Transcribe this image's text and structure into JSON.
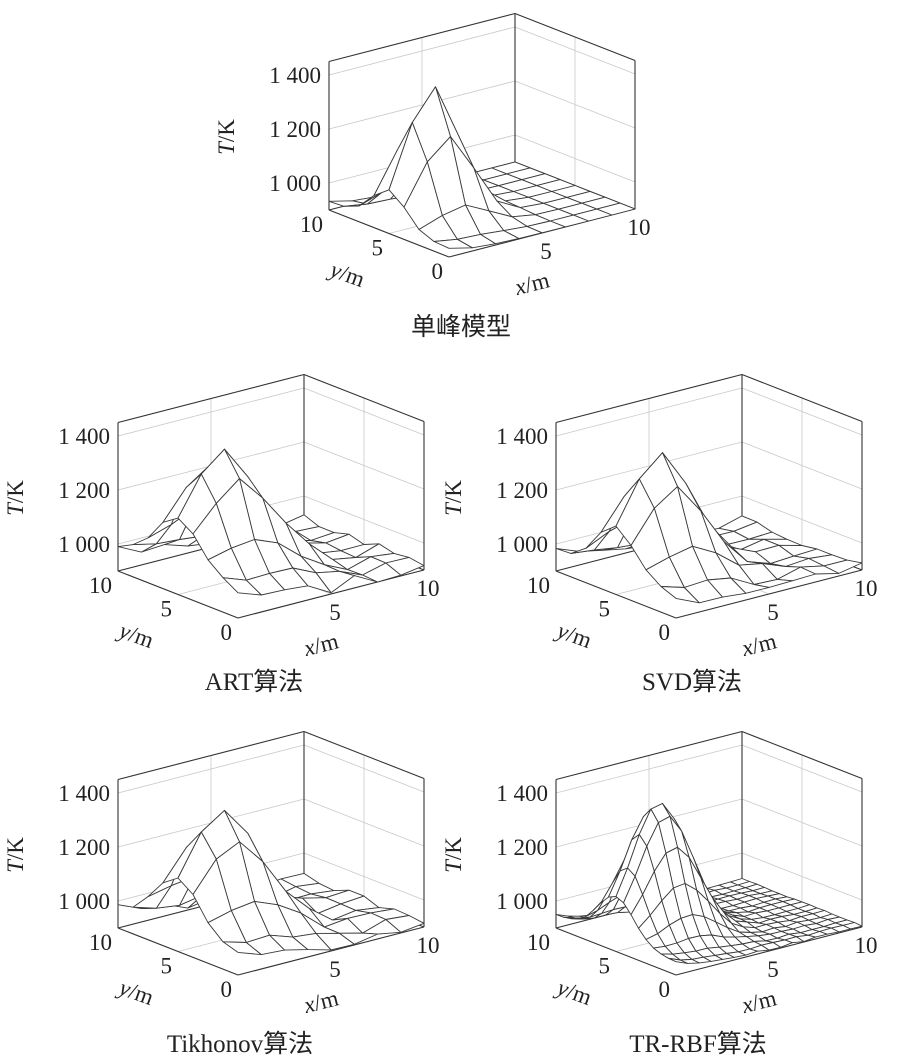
{
  "chart_data": [
    {
      "type": "surface",
      "title": "单峰模型",
      "xlabel": {
        "var": "x",
        "unit": "/m"
      },
      "ylabel": {
        "var": "y",
        "unit": "/m"
      },
      "zlabel": {
        "var": "T",
        "unit": "/K"
      },
      "x_ticks": [
        "5",
        "10"
      ],
      "y_ticks": [
        "0",
        "5",
        "10"
      ],
      "z_ticks": [
        "1 000",
        "1 200",
        "1 400"
      ],
      "xlim": [
        0,
        10
      ],
      "ylim": [
        0,
        10
      ],
      "zlim": [
        900,
        1450
      ],
      "grid": true,
      "surface": {
        "grid_n": 9,
        "base_T": 900,
        "peak_T": 1400,
        "peak_x": 2.3,
        "peak_y": 5.0,
        "sigma": 1.4,
        "edge_T": 940,
        "noise": 0
      }
    },
    {
      "type": "surface",
      "title": "ART算法",
      "xlabel": {
        "var": "x",
        "unit": "/m"
      },
      "ylabel": {
        "var": "y",
        "unit": "/m"
      },
      "zlabel": {
        "var": "T",
        "unit": "/K"
      },
      "x_ticks": [
        "5",
        "10"
      ],
      "y_ticks": [
        "0",
        "5",
        "10"
      ],
      "z_ticks": [
        "1 000",
        "1 200",
        "1 400"
      ],
      "xlim": [
        0,
        10
      ],
      "ylim": [
        0,
        10
      ],
      "zlim": [
        900,
        1450
      ],
      "grid": true,
      "surface": {
        "grid_n": 9,
        "base_T": 920,
        "peak_T": 1375,
        "peak_x": 2.5,
        "peak_y": 5.0,
        "sigma": 1.9,
        "edge_T": 1010,
        "noise": 28
      }
    },
    {
      "type": "surface",
      "title": "SVD算法",
      "xlabel": {
        "var": "x",
        "unit": "/m"
      },
      "ylabel": {
        "var": "y",
        "unit": "/m"
      },
      "zlabel": {
        "var": "T",
        "unit": "/K"
      },
      "x_ticks": [
        "5",
        "10"
      ],
      "y_ticks": [
        "0",
        "5",
        "10"
      ],
      "z_ticks": [
        "1 000",
        "1 200",
        "1 400"
      ],
      "xlim": [
        0,
        10
      ],
      "ylim": [
        0,
        10
      ],
      "zlim": [
        900,
        1450
      ],
      "grid": true,
      "surface": {
        "grid_n": 9,
        "base_T": 915,
        "peak_T": 1385,
        "peak_x": 2.4,
        "peak_y": 5.0,
        "sigma": 1.7,
        "edge_T": 990,
        "noise": 20
      }
    },
    {
      "type": "surface",
      "title": "Tikhonov算法",
      "xlabel": {
        "var": "x",
        "unit": "/m"
      },
      "ylabel": {
        "var": "y",
        "unit": "/m"
      },
      "zlabel": {
        "var": "T",
        "unit": "/K"
      },
      "x_ticks": [
        "5",
        "10"
      ],
      "y_ticks": [
        "0",
        "5",
        "10"
      ],
      "z_ticks": [
        "1 000",
        "1 200",
        "1 400"
      ],
      "xlim": [
        0,
        10
      ],
      "ylim": [
        0,
        10
      ],
      "zlim": [
        900,
        1450
      ],
      "grid": true,
      "surface": {
        "grid_n": 9,
        "base_T": 915,
        "peak_T": 1380,
        "peak_x": 2.4,
        "peak_y": 5.0,
        "sigma": 1.8,
        "edge_T": 1000,
        "noise": 24
      }
    },
    {
      "type": "surface",
      "title": "TR-RBF算法",
      "xlabel": {
        "var": "x",
        "unit": "/m"
      },
      "ylabel": {
        "var": "y",
        "unit": "/m"
      },
      "zlabel": {
        "var": "T",
        "unit": "/K"
      },
      "x_ticks": [
        "5",
        "10"
      ],
      "y_ticks": [
        "0",
        "5",
        "10"
      ],
      "z_ticks": [
        "1 000",
        "1 200",
        "1 400"
      ],
      "xlim": [
        0,
        10
      ],
      "ylim": [
        0,
        10
      ],
      "zlim": [
        900,
        1450
      ],
      "grid": true,
      "surface": {
        "grid_n": 17,
        "base_T": 905,
        "peak_T": 1405,
        "peak_x": 2.3,
        "peak_y": 5.0,
        "sigma": 1.5,
        "edge_T": 960,
        "noise": 4
      }
    }
  ]
}
